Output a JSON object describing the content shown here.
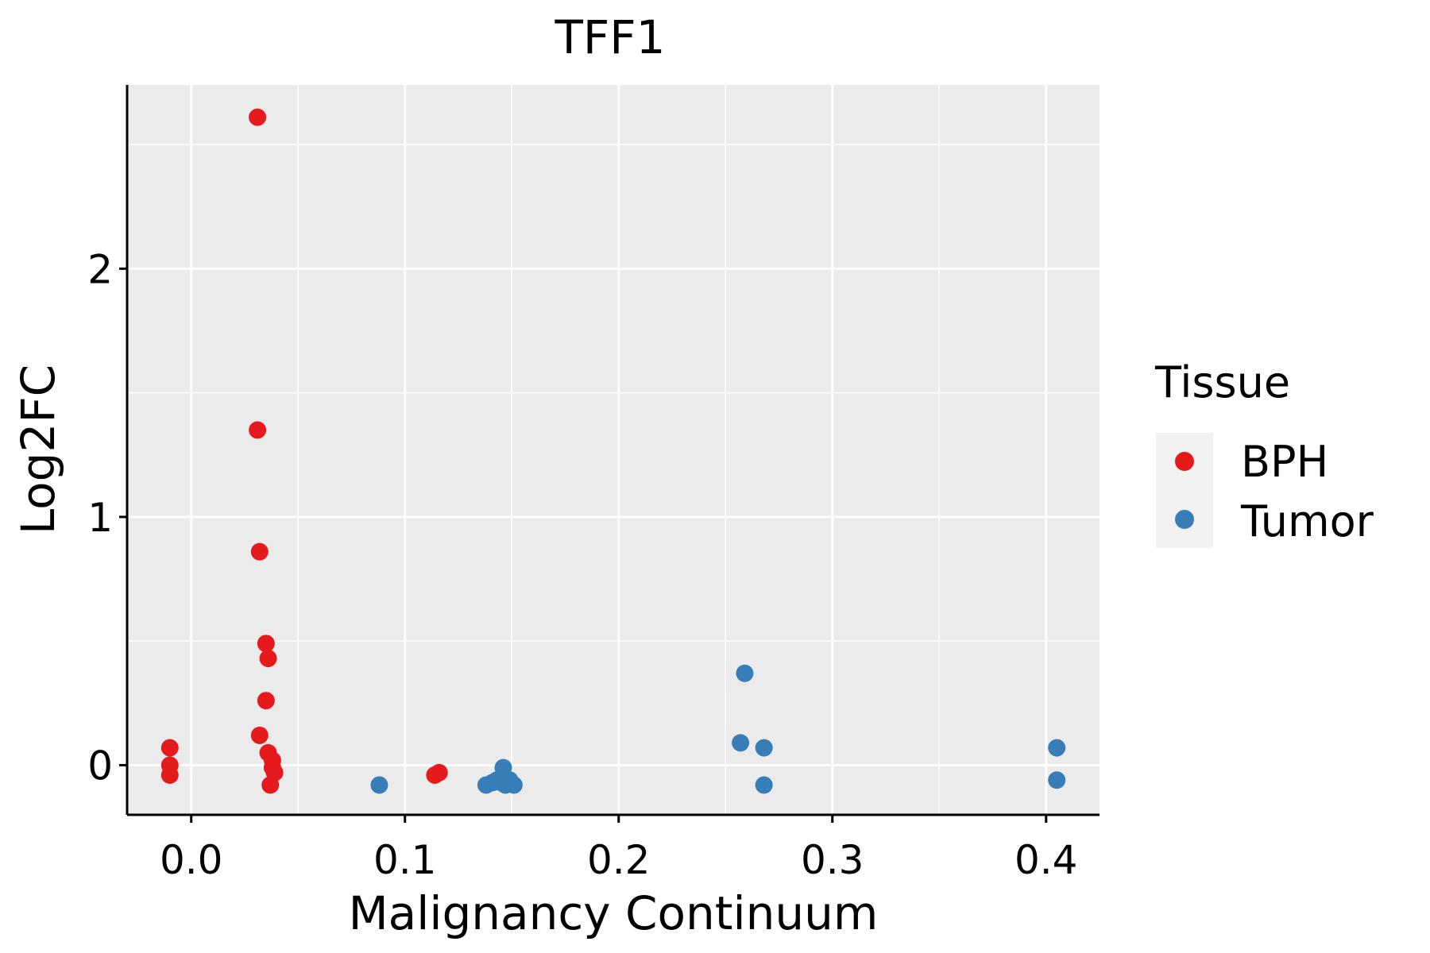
{
  "chart_data": {
    "type": "scatter",
    "title": "TFF1",
    "xlabel": "Malignancy Continuum",
    "ylabel": "Log2FC",
    "xlim": [
      -0.03,
      0.425
    ],
    "ylim": [
      -0.2,
      2.74
    ],
    "x_ticks": [
      0.0,
      0.1,
      0.2,
      0.3,
      0.4
    ],
    "x_tick_labels": [
      "0.0",
      "0.1",
      "0.2",
      "0.3",
      "0.4"
    ],
    "y_ticks": [
      0,
      1,
      2
    ],
    "y_tick_labels": [
      "0",
      "1",
      "2"
    ],
    "grid": true,
    "legend": {
      "title": "Tissue",
      "position": "right",
      "entries": [
        "BPH",
        "Tumor"
      ]
    },
    "series": [
      {
        "name": "BPH",
        "color": "#E41A1C",
        "points": [
          {
            "x": 0.031,
            "y": 2.61
          },
          {
            "x": 0.031,
            "y": 1.35
          },
          {
            "x": 0.032,
            "y": 0.86
          },
          {
            "x": 0.035,
            "y": 0.49
          },
          {
            "x": 0.036,
            "y": 0.43
          },
          {
            "x": 0.035,
            "y": 0.26
          },
          {
            "x": 0.032,
            "y": 0.12
          },
          {
            "x": 0.036,
            "y": 0.05
          },
          {
            "x": 0.038,
            "y": 0.02
          },
          {
            "x": 0.038,
            "y": -0.01
          },
          {
            "x": 0.039,
            "y": -0.03
          },
          {
            "x": 0.037,
            "y": -0.08
          },
          {
            "x": -0.01,
            "y": 0.07
          },
          {
            "x": -0.01,
            "y": 0.0
          },
          {
            "x": -0.01,
            "y": -0.04
          },
          {
            "x": 0.114,
            "y": -0.04
          },
          {
            "x": 0.116,
            "y": -0.03
          }
        ]
      },
      {
        "name": "Tumor",
        "color": "#377EB8",
        "points": [
          {
            "x": 0.088,
            "y": -0.08
          },
          {
            "x": 0.138,
            "y": -0.08
          },
          {
            "x": 0.141,
            "y": -0.07
          },
          {
            "x": 0.143,
            "y": -0.06
          },
          {
            "x": 0.145,
            "y": -0.07
          },
          {
            "x": 0.146,
            "y": -0.01
          },
          {
            "x": 0.147,
            "y": -0.08
          },
          {
            "x": 0.149,
            "y": -0.06
          },
          {
            "x": 0.151,
            "y": -0.08
          },
          {
            "x": 0.259,
            "y": 0.37
          },
          {
            "x": 0.257,
            "y": 0.09
          },
          {
            "x": 0.268,
            "y": 0.07
          },
          {
            "x": 0.268,
            "y": -0.08
          },
          {
            "x": 0.405,
            "y": 0.07
          },
          {
            "x": 0.405,
            "y": -0.06
          }
        ]
      }
    ]
  }
}
